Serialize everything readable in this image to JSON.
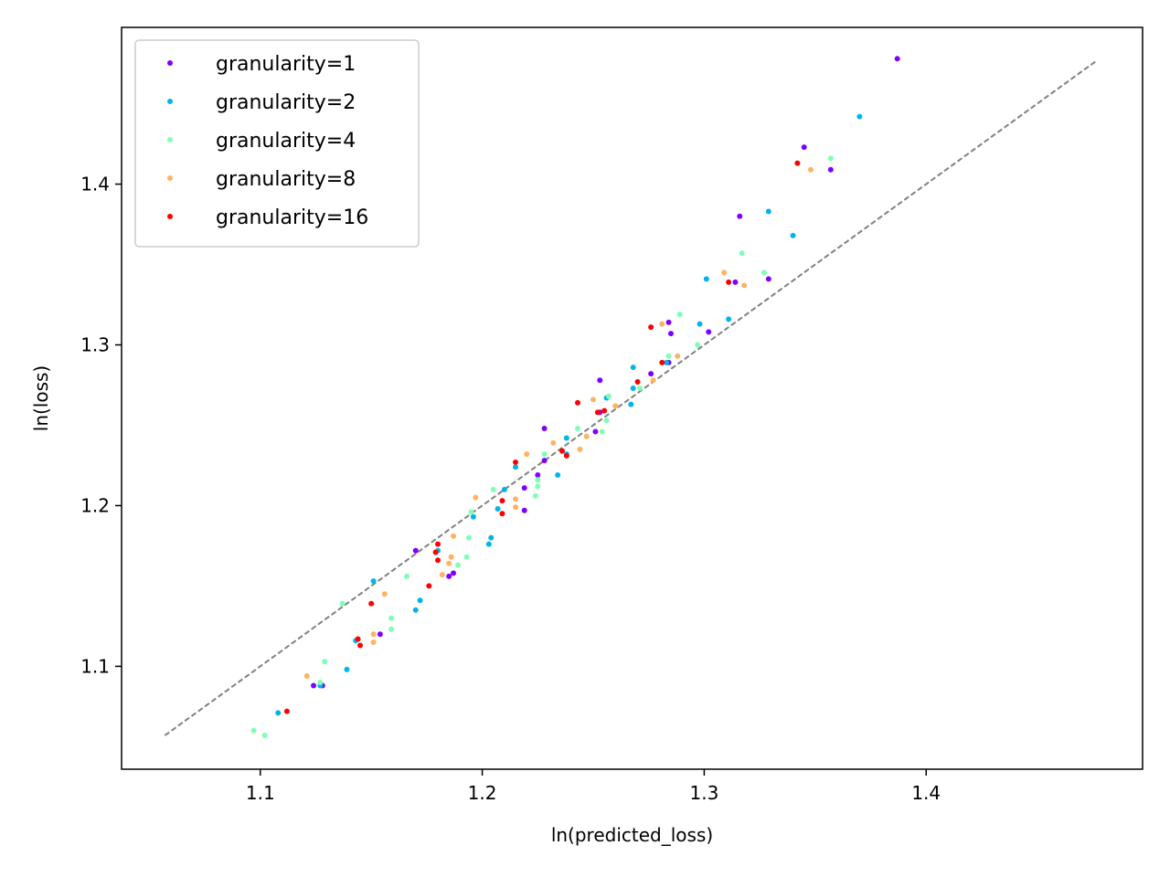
{
  "chart_data": {
    "type": "scatter",
    "title": "",
    "xlabel": "ln(predicted_loss)",
    "ylabel": "ln(loss)",
    "xlim": [
      1.0375,
      1.4975
    ],
    "ylim": [
      1.036,
      1.4975
    ],
    "xticks": [
      1.1,
      1.2,
      1.3,
      1.4
    ],
    "yticks": [
      1.1,
      1.2,
      1.3,
      1.4
    ],
    "xtick_labels": [
      "1.1",
      "1.2",
      "1.3",
      "1.4"
    ],
    "ytick_labels": [
      "1.1",
      "1.2",
      "1.3",
      "1.4"
    ],
    "grid": false,
    "legend_position": "top-left",
    "reference_line": {
      "x": [
        1.057,
        1.477
      ],
      "y": [
        1.057,
        1.477
      ],
      "style": "dashed",
      "color": "#808080"
    },
    "series": [
      {
        "name": "granularity=1",
        "color": "#8000ff",
        "points": [
          [
            1.387,
            1.478
          ],
          [
            1.345,
            1.423
          ],
          [
            1.357,
            1.409
          ],
          [
            1.316,
            1.38
          ],
          [
            1.314,
            1.339
          ],
          [
            1.329,
            1.341
          ],
          [
            1.284,
            1.314
          ],
          [
            1.285,
            1.307
          ],
          [
            1.302,
            1.308
          ],
          [
            1.276,
            1.282
          ],
          [
            1.284,
            1.289
          ],
          [
            1.253,
            1.278
          ],
          [
            1.253,
            1.258
          ],
          [
            1.228,
            1.248
          ],
          [
            1.251,
            1.246
          ],
          [
            1.228,
            1.228
          ],
          [
            1.225,
            1.219
          ],
          [
            1.219,
            1.211
          ],
          [
            1.219,
            1.197
          ],
          [
            1.17,
            1.172
          ],
          [
            1.187,
            1.158
          ],
          [
            1.185,
            1.156
          ],
          [
            1.154,
            1.12
          ],
          [
            1.124,
            1.088
          ],
          [
            1.128,
            1.088
          ]
        ]
      },
      {
        "name": "granularity=2",
        "color": "#00b5eb",
        "points": [
          [
            1.37,
            1.442
          ],
          [
            1.329,
            1.383
          ],
          [
            1.34,
            1.368
          ],
          [
            1.301,
            1.341
          ],
          [
            1.311,
            1.316
          ],
          [
            1.298,
            1.313
          ],
          [
            1.268,
            1.286
          ],
          [
            1.283,
            1.289
          ],
          [
            1.268,
            1.273
          ],
          [
            1.267,
            1.263
          ],
          [
            1.256,
            1.267
          ],
          [
            1.238,
            1.242
          ],
          [
            1.238,
            1.232
          ],
          [
            1.234,
            1.219
          ],
          [
            1.215,
            1.224
          ],
          [
            1.21,
            1.21
          ],
          [
            1.207,
            1.198
          ],
          [
            1.196,
            1.193
          ],
          [
            1.203,
            1.176
          ],
          [
            1.204,
            1.18
          ],
          [
            1.18,
            1.172
          ],
          [
            1.172,
            1.141
          ],
          [
            1.17,
            1.135
          ],
          [
            1.151,
            1.153
          ],
          [
            1.143,
            1.116
          ],
          [
            1.139,
            1.098
          ],
          [
            1.127,
            1.088
          ],
          [
            1.108,
            1.071
          ]
        ]
      },
      {
        "name": "granularity=4",
        "color": "#80ffb4",
        "points": [
          [
            1.357,
            1.416
          ],
          [
            1.317,
            1.357
          ],
          [
            1.327,
            1.345
          ],
          [
            1.289,
            1.319
          ],
          [
            1.297,
            1.3
          ],
          [
            1.284,
            1.293
          ],
          [
            1.271,
            1.273
          ],
          [
            1.257,
            1.268
          ],
          [
            1.256,
            1.253
          ],
          [
            1.243,
            1.248
          ],
          [
            1.254,
            1.246
          ],
          [
            1.228,
            1.232
          ],
          [
            1.225,
            1.216
          ],
          [
            1.225,
            1.212
          ],
          [
            1.224,
            1.206
          ],
          [
            1.205,
            1.21
          ],
          [
            1.195,
            1.196
          ],
          [
            1.194,
            1.18
          ],
          [
            1.193,
            1.168
          ],
          [
            1.189,
            1.163
          ],
          [
            1.166,
            1.156
          ],
          [
            1.159,
            1.13
          ],
          [
            1.159,
            1.123
          ],
          [
            1.137,
            1.139
          ],
          [
            1.129,
            1.103
          ],
          [
            1.127,
            1.09
          ],
          [
            1.097,
            1.06
          ],
          [
            1.102,
            1.057
          ]
        ]
      },
      {
        "name": "granularity=8",
        "color": "#ffb360",
        "points": [
          [
            1.348,
            1.409
          ],
          [
            1.318,
            1.337
          ],
          [
            1.309,
            1.345
          ],
          [
            1.281,
            1.313
          ],
          [
            1.288,
            1.293
          ],
          [
            1.277,
            1.278
          ],
          [
            1.26,
            1.262
          ],
          [
            1.25,
            1.266
          ],
          [
            1.244,
            1.235
          ],
          [
            1.247,
            1.243
          ],
          [
            1.232,
            1.239
          ],
          [
            1.22,
            1.232
          ],
          [
            1.215,
            1.204
          ],
          [
            1.215,
            1.199
          ],
          [
            1.197,
            1.205
          ],
          [
            1.187,
            1.181
          ],
          [
            1.186,
            1.168
          ],
          [
            1.185,
            1.164
          ],
          [
            1.182,
            1.157
          ],
          [
            1.156,
            1.145
          ],
          [
            1.151,
            1.12
          ],
          [
            1.151,
            1.115
          ],
          [
            1.121,
            1.094
          ]
        ]
      },
      {
        "name": "granularity=16",
        "color": "#ff0000",
        "points": [
          [
            1.342,
            1.413
          ],
          [
            1.311,
            1.339
          ],
          [
            1.276,
            1.311
          ],
          [
            1.281,
            1.289
          ],
          [
            1.27,
            1.277
          ],
          [
            1.255,
            1.259
          ],
          [
            1.243,
            1.264
          ],
          [
            1.252,
            1.258
          ],
          [
            1.236,
            1.234
          ],
          [
            1.238,
            1.231
          ],
          [
            1.215,
            1.227
          ],
          [
            1.209,
            1.203
          ],
          [
            1.209,
            1.195
          ],
          [
            1.18,
            1.176
          ],
          [
            1.179,
            1.171
          ],
          [
            1.18,
            1.166
          ],
          [
            1.176,
            1.15
          ],
          [
            1.15,
            1.139
          ],
          [
            1.144,
            1.117
          ],
          [
            1.145,
            1.113
          ],
          [
            1.112,
            1.072
          ]
        ]
      }
    ]
  }
}
